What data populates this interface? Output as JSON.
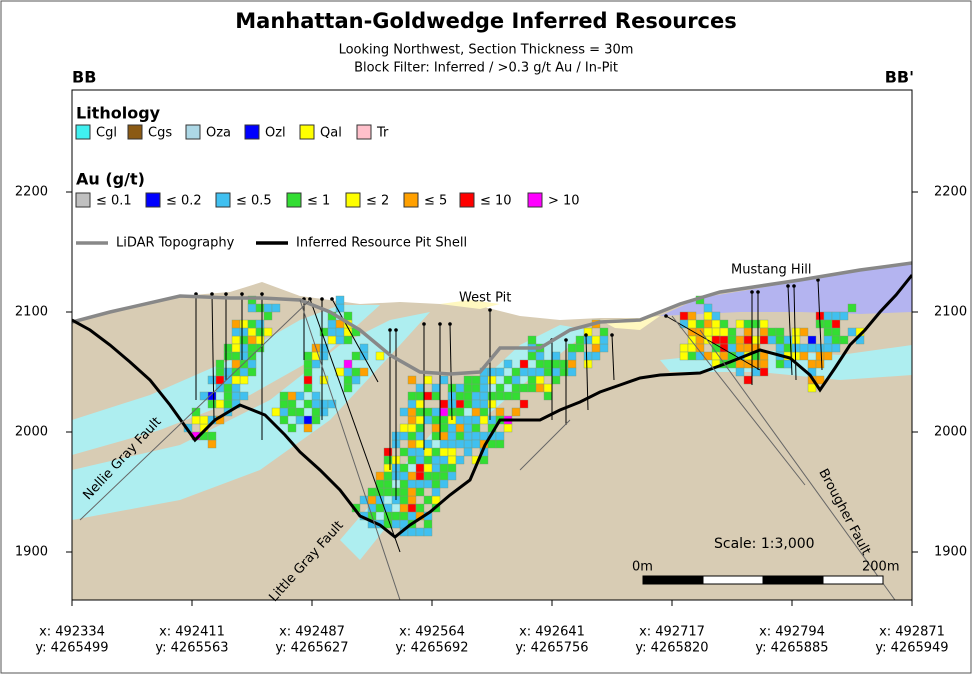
{
  "title": "Manhattan-Goldwedge Inferred Resources",
  "subtitle": [
    "Looking Northwest, Section Thickness = 30m",
    "Block Filter: Inferred / >0.3 g/t Au / In-Pit"
  ],
  "section_labels": {
    "left": "BB",
    "right": "BB'"
  },
  "lithology_legend": {
    "title": "Lithology",
    "items": [
      {
        "label": "Cgl",
        "color": "#40f0f0"
      },
      {
        "label": "Cgs",
        "color": "#8b5a14"
      },
      {
        "label": "Oza",
        "color": "#add8e6"
      },
      {
        "label": "Ozl",
        "color": "#0000ff"
      },
      {
        "label": "Qal",
        "color": "#ffff00"
      },
      {
        "label": "Tr",
        "color": "#ffc0cb"
      }
    ]
  },
  "grade_legend": {
    "title": "Au (g/t)",
    "items": [
      {
        "label": "≤ 0.1",
        "color": "#c0c0c0"
      },
      {
        "label": "≤ 0.2",
        "color": "#0000ff"
      },
      {
        "label": "≤ 0.5",
        "color": "#40c0f0"
      },
      {
        "label": "≤ 1",
        "color": "#33dd33"
      },
      {
        "label": "≤ 2",
        "color": "#ffff00"
      },
      {
        "label": "≤ 5",
        "color": "#ffa000"
      },
      {
        "label": "≤ 10",
        "color": "#ff0000"
      },
      {
        "label": "> 10",
        "color": "#ff00ff"
      }
    ]
  },
  "line_legend": [
    {
      "label": "LiDAR Topography",
      "color": "#888888"
    },
    {
      "label": "Inferred Resource Pit Shell",
      "color": "#000000"
    }
  ],
  "elevation_ticks": [
    1900,
    2000,
    2100,
    2200
  ],
  "coordinates": [
    {
      "x": "x: 492334",
      "y": "y: 4265499"
    },
    {
      "x": "x: 492411",
      "y": "y: 4265563"
    },
    {
      "x": "x: 492487",
      "y": "y: 4265627"
    },
    {
      "x": "x: 492564",
      "y": "y: 4265692"
    },
    {
      "x": "x: 492641",
      "y": "y: 4265756"
    },
    {
      "x": "x: 492717",
      "y": "y: 4265820"
    },
    {
      "x": "x: 492794",
      "y": "y: 4265885"
    },
    {
      "x": "x: 492871",
      "y": "y: 4265949"
    }
  ],
  "annotations": {
    "west_pit": "West Pit",
    "mustang_hill": "Mustang Hill",
    "nellie_gray_fault": "Nellie Gray Fault",
    "little_gray_fault": "Little Gray Fault",
    "brougher_fault": "Brougher Fault"
  },
  "scale": {
    "label": "Scale: 1:3,000",
    "start": "0m",
    "end": "200m"
  }
}
